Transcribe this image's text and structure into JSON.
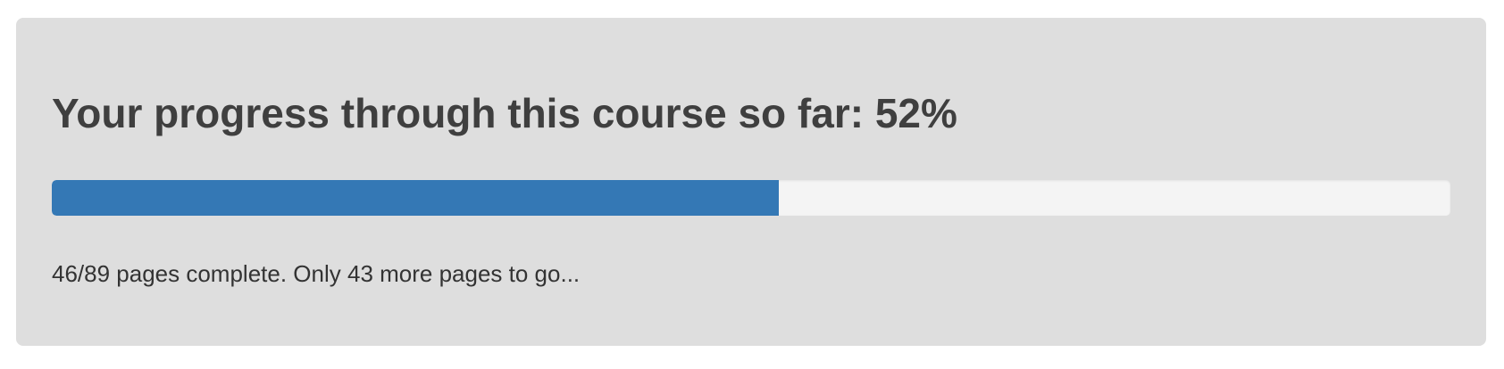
{
  "progress_panel": {
    "heading": "Your progress through this course so far: 52%",
    "progress_fraction": 0.52,
    "summary": "46/89 pages complete. Only 43 more pages to go...",
    "colors": {
      "panel_background": "#dedede",
      "track": "#f4f4f4",
      "fill": "#3478b5",
      "heading_text": "#3f3f3f",
      "summary_text": "#333333"
    }
  }
}
